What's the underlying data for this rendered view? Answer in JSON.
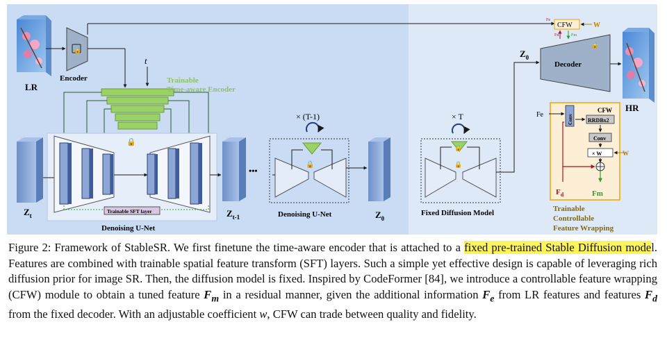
{
  "figure": {
    "lr_label": "LR",
    "encoder_label": "Encoder",
    "t_label": "t",
    "trainable_label_1": "Trainable",
    "trainable_label_2": "Time-aware Encoder",
    "sft_label": "Trainable SFT layer",
    "denoising_unet_label": "Denoising U-Net",
    "zt_label": "Z",
    "zt_sub": "t",
    "zt1_label": "Z",
    "zt1_sub": "t-1",
    "dots": "•••",
    "loop1_label": "× (T-1)",
    "denoising_unet2_label": "Denoising U-Net",
    "z0_label": "Z",
    "z0_sub": "0",
    "loopT_label": "× T",
    "fixed_diffusion_label": "Fixed Diffusion Model",
    "z0_top_label": "Z",
    "z0_top_sub": "0",
    "decoder_label": "Decoder",
    "hr_label": "HR",
    "cfw_top_label": "CFW",
    "w_top_label": "W",
    "fe_small": "Fe",
    "fd_small": "Fd",
    "fm_small": "Fm",
    "cfw_box_label": "CFW",
    "fe_label": "Fe",
    "conv_vertical": "Conv",
    "rrdb_label": "RRDBx2",
    "conv_label": "Conv",
    "xw_label": "× W",
    "w_right_label": "W",
    "fd_label": "F",
    "fd_sub": "d",
    "fm_label": "Fm",
    "cfw_caption_1": "Trainable",
    "cfw_caption_2": "Controllable",
    "cfw_caption_3": "Feature Wrapping",
    "colors": {
      "panel_left": "#c9dcf3",
      "panel_right": "#dde9f7",
      "trainable_green": "#9bd266",
      "trainable_text": "#8fc36a",
      "cfw_fill": "#fcefd5",
      "cfw_border": "#f0a400",
      "arrow": "#1a1a1a",
      "green_arrow": "#2e9c2e",
      "red_arrow": "#b01020",
      "highlight": "#fdf35a"
    }
  },
  "caption": {
    "p1": "Figure 2: Framework of StableSR. We first finetune the time-aware encoder that is attached to a ",
    "highlight": "fixed pre-trained Stable Diffusion mode",
    "p2": "l. Features are combined with trainable spatial feature transform (SFT) layers. Such a simple yet effective design is capable of leveraging rich diffusion prior for image SR. Then, the diffusion model is fixed. Inspired by CodeFormer [84], we introduce a controllable feature wrapping (CFW) module to obtain a tuned feature ",
    "fm": "F",
    "fm_sub": "m",
    "p3": " in a residual manner, given the additional information ",
    "fe": "F",
    "fe_sub": "e",
    "p4": " from LR features and features ",
    "fd": "F",
    "fd_sub": "d",
    "p5": " from the fixed decoder. With an adjustable coefficient ",
    "w": "w",
    "p6": ", CFW can trade between quality and fidelity."
  }
}
